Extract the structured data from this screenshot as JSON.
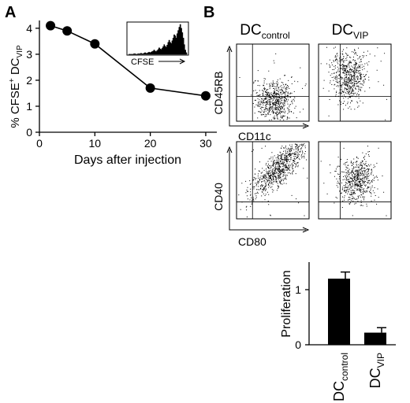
{
  "panel_labels": {
    "a": "A",
    "b": "B"
  },
  "chart_data": [
    {
      "type": "line",
      "ylabel": {
        "main": "% CFSE",
        "sup": "+",
        "mid": " DC",
        "sub": "VIP"
      },
      "xlabel": "Days after injection",
      "x": [
        2,
        5,
        10,
        20,
        30
      ],
      "y": [
        4.1,
        3.9,
        3.4,
        1.7,
        1.4
      ],
      "xlim": [
        0,
        32
      ],
      "ylim": [
        0,
        4.3
      ],
      "xticks": [
        "0",
        "10",
        "20",
        "30"
      ],
      "yticks": [
        "0",
        "1",
        "2",
        "3",
        "4"
      ],
      "inset_label": "CFSE",
      "inset_bins": [
        0,
        0,
        0,
        0,
        0,
        1,
        1,
        0,
        0,
        1,
        1,
        1,
        2,
        1,
        1,
        2,
        3,
        2,
        2,
        3,
        4,
        3,
        4,
        5,
        6,
        8,
        6,
        5,
        7,
        9,
        12,
        10,
        9,
        11,
        14,
        18,
        15,
        13,
        17,
        22,
        26,
        22,
        20,
        25,
        30,
        36,
        34,
        30,
        38,
        44,
        50,
        55,
        48,
        40,
        30,
        18,
        8,
        3
      ]
    },
    {
      "type": "scatter",
      "columns": [
        {
          "main": "DC",
          "sub": "control"
        },
        {
          "main": "DC",
          "sub": "VIP"
        }
      ],
      "rows": [
        {
          "ylabel": "CD45RB",
          "xlabel": "CD11c"
        },
        {
          "ylabel": "CD40",
          "xlabel": "CD80"
        }
      ]
    },
    {
      "type": "bar",
      "ylabel": "Proliferation",
      "categories": [
        {
          "main": "DC",
          "sub": "control"
        },
        {
          "main": "DC",
          "sub": "VIP"
        }
      ],
      "values": [
        1.2,
        0.22
      ],
      "errors": [
        0.12,
        0.09
      ],
      "ylim": [
        0,
        1.5
      ],
      "yticks": [
        "0",
        "1"
      ]
    }
  ]
}
